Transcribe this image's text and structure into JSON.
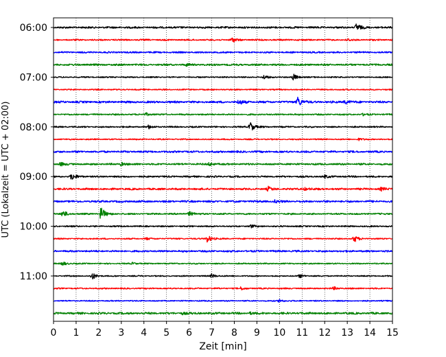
{
  "chart_data": {
    "type": "line",
    "xlabel": "Zeit  [min]",
    "ylabel": "UTC (Lokalzeit = UTC + 02:00)",
    "xlim": [
      0,
      15
    ],
    "x_ticks": [
      0,
      1,
      2,
      3,
      4,
      5,
      6,
      7,
      8,
      9,
      10,
      11,
      12,
      13,
      14,
      15
    ],
    "y_tick_labels": [
      "06:00",
      "07:00",
      "08:00",
      "09:00",
      "10:00",
      "11:00"
    ],
    "grid": "vertical dotted lines at each minute",
    "trace_colors": [
      "#000000",
      "#ff0000",
      "#0000ff",
      "#008000"
    ],
    "traces": [
      {
        "start": "06:00",
        "events": [
          [
            13.4,
            6
          ]
        ]
      },
      {
        "start": "06:15",
        "events": [
          [
            7.9,
            3.5
          ],
          [
            13.0,
            1.5
          ]
        ]
      },
      {
        "start": "06:30",
        "events": []
      },
      {
        "start": "06:45",
        "events": [
          [
            5.9,
            1.5
          ]
        ]
      },
      {
        "start": "07:00",
        "events": [
          [
            9.3,
            3
          ],
          [
            10.6,
            5
          ]
        ]
      },
      {
        "start": "07:15",
        "events": []
      },
      {
        "start": "07:30",
        "events": [
          [
            8.2,
            3.5
          ],
          [
            10.8,
            8
          ],
          [
            12.9,
            3
          ]
        ]
      },
      {
        "start": "07:45",
        "events": [
          [
            4.1,
            2
          ],
          [
            13.7,
            1.2
          ]
        ]
      },
      {
        "start": "08:00",
        "events": [
          [
            4.2,
            2.5
          ],
          [
            8.7,
            8
          ]
        ]
      },
      {
        "start": "08:15",
        "events": [
          [
            13.5,
            1.5
          ]
        ]
      },
      {
        "start": "08:30",
        "events": []
      },
      {
        "start": "08:45",
        "events": [
          [
            0.3,
            2.5
          ],
          [
            3.0,
            2.5
          ],
          [
            6.9,
            2.5
          ]
        ]
      },
      {
        "start": "09:00",
        "events": [
          [
            0.8,
            5
          ],
          [
            12.0,
            2
          ]
        ]
      },
      {
        "start": "09:15",
        "events": [
          [
            9.5,
            3
          ],
          [
            11.1,
            2
          ],
          [
            14.5,
            2
          ]
        ]
      },
      {
        "start": "09:30",
        "events": [
          [
            9.8,
            1.5
          ]
        ]
      },
      {
        "start": "09:45",
        "events": [
          [
            0.4,
            5
          ],
          [
            2.1,
            10
          ],
          [
            6.0,
            3.5
          ]
        ]
      },
      {
        "start": "10:00",
        "events": [
          [
            8.7,
            2.5
          ]
        ]
      },
      {
        "start": "10:15",
        "events": [
          [
            6.8,
            6
          ],
          [
            13.3,
            5
          ],
          [
            4.1,
            1.5
          ]
        ]
      },
      {
        "start": "10:30",
        "events": []
      },
      {
        "start": "10:45",
        "events": [
          [
            0.4,
            3
          ],
          [
            3.5,
            1.5
          ]
        ]
      },
      {
        "start": "11:00",
        "events": [
          [
            1.7,
            5
          ],
          [
            7.0,
            3
          ],
          [
            10.9,
            2.5
          ]
        ]
      },
      {
        "start": "11:15",
        "events": [
          [
            8.3,
            2
          ],
          [
            12.4,
            2
          ]
        ]
      },
      {
        "start": "11:30",
        "events": [
          [
            10.0,
            2.5
          ]
        ]
      },
      {
        "start": "11:45",
        "events": [
          [
            5.7,
            1.5
          ],
          [
            8.7,
            1.5
          ]
        ]
      }
    ]
  }
}
